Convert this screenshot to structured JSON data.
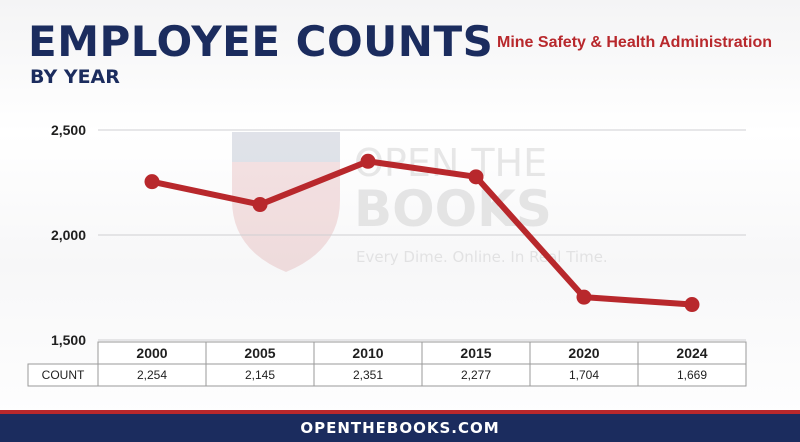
{
  "header": {
    "title": "EMPLOYEE COUNTS",
    "subtitle": "BY YEAR",
    "agency": "Mine Safety & Health Administration"
  },
  "watermark": {
    "line1": "OPEN THE",
    "line2": "BOOKS",
    "tagline": "Every Dime. Online. In Real Time."
  },
  "footer": {
    "label": "OPENTHEBOOKS.COM"
  },
  "colors": {
    "navy": "#1b2c5e",
    "red": "#b8282c",
    "grid": "#cfcfd3"
  },
  "chart_data": {
    "type": "line",
    "categories": [
      "2000",
      "2005",
      "2010",
      "2015",
      "2020",
      "2024"
    ],
    "series": [
      {
        "values": [
          2254,
          2145,
          2351,
          2277,
          1704,
          1669
        ]
      }
    ],
    "y_ticks": [
      1500,
      2000,
      2500
    ],
    "y_tick_labels": [
      "1,500",
      "2,000",
      "2,500"
    ],
    "ylim": [
      1500,
      2500
    ],
    "grid": true,
    "table": {
      "row_label": "COUNT",
      "values": [
        "2,254",
        "2,145",
        "2,351",
        "2,277",
        "1,704",
        "1,669"
      ]
    }
  }
}
